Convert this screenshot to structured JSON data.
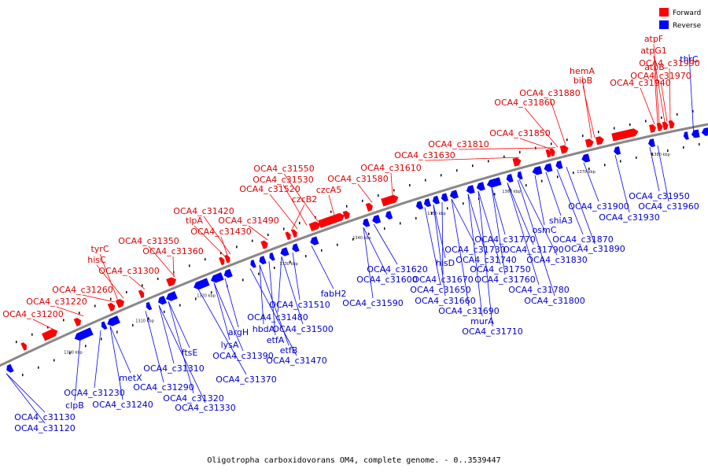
{
  "caption": "Oligotropha carboxidovorans OM4, complete genome. - 0..3539447",
  "legend": [
    {
      "label": "Forward",
      "color": "#ff0000"
    },
    {
      "label": "Reverse",
      "color": "#0000ff"
    }
  ],
  "colors": {
    "forward": "#ff0000",
    "reverse": "#0000ff",
    "backbone": "#888888"
  },
  "ticks": [
    "1300 kbp",
    "1310 kbp",
    "1320 kbp",
    "1330 kbp",
    "1340 kbp",
    "1350 kbp",
    "1360 kbp",
    "1370 kbp",
    "1380 kbp"
  ],
  "forward_labels": [
    "atpF",
    "atpG1",
    "OCA4_c31990",
    "OCA4_c31970",
    "OCA4_c31940",
    "atpB",
    "hemA",
    "bioB",
    "OCA4_c31880",
    "OCA4_c31860",
    "OCA4_c31850",
    "OCA4_c31810",
    "OCA4_c31630",
    "OCA4_c31610",
    "OCA4_c31580",
    "czcA5",
    "OCA4_c31550",
    "OCA4_c31530",
    "OCA4_c31520",
    "czcB2",
    "OCA4_c31420",
    "tlpA",
    "OCA4_c31490",
    "OCA4_c31430",
    "OCA4_c31350",
    "OCA4_c31360",
    "tyrC",
    "hisC",
    "OCA4_c31300",
    "OCA4_c31260",
    "OCA4_c31220",
    "OCA4_c31200"
  ],
  "reverse_labels": [
    "thrC",
    "OCA4_c31950",
    "OCA4_c31960",
    "OCA4_c31900",
    "OCA4_c31930",
    "shiA3",
    "osmC",
    "OCA4_c31870",
    "OCA4_c31890",
    "OCA4_c31770",
    "OCA4_c31790",
    "OCA4_c31830",
    "OCA4_c31730",
    "OCA4_c31740",
    "hisD",
    "OCA4_c31750",
    "OCA4_c31760",
    "OCA4_c31780",
    "OCA4_c31800",
    "OCA4_c31620",
    "OCA4_c31600",
    "OCA4_c31670",
    "OCA4_c31650",
    "OCA4_c31660",
    "OCA4_c31690",
    "murA",
    "OCA4_c31710",
    "fabH2",
    "OCA4_c31590",
    "OCA4_c31510",
    "OCA4_c31480",
    "OCA4_c31500",
    "hbdA",
    "etfA",
    "etfB",
    "OCA4_c31470",
    "argH",
    "lysA",
    "OCA4_c31390",
    "OCA4_c31370",
    "ftsE",
    "OCA4_c31310",
    "OCA4_c31290",
    "OCA4_c31320",
    "OCA4_c31330",
    "metX",
    "OCA4_c31230",
    "OCA4_c31240",
    "clpB",
    "OCA4_c31130",
    "OCA4_c31120"
  ]
}
